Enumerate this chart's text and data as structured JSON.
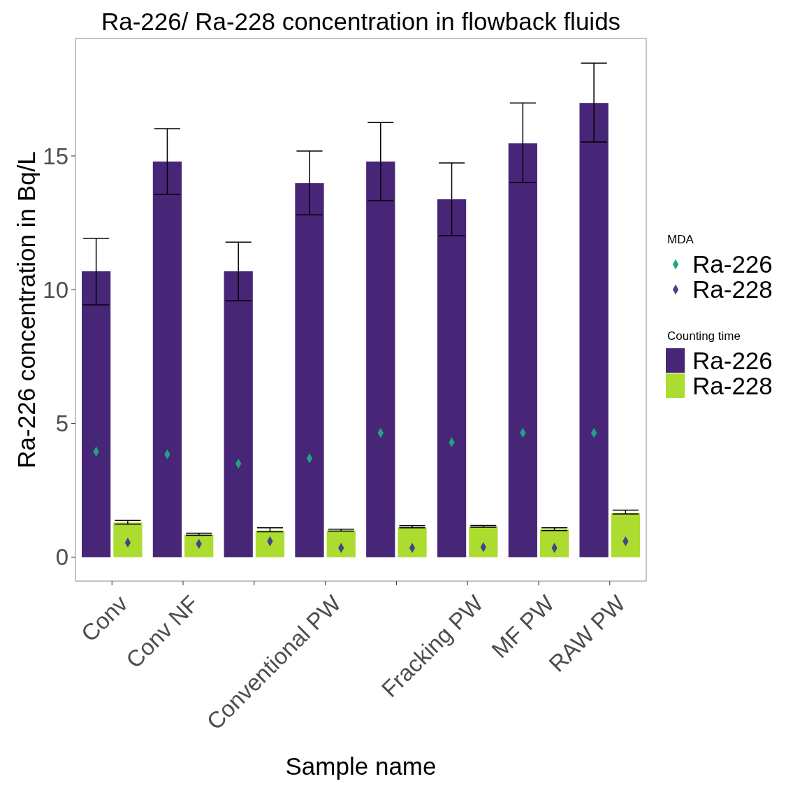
{
  "chart_data": {
    "type": "bar",
    "title": "Ra-226/ Ra-228 concentration in flowback fluids",
    "xlabel": "Sample name",
    "ylabel": "Ra-226 concentration in Bq/L",
    "categories": [
      "Conv",
      "Conv NF",
      null,
      "Conventional PW",
      null,
      "Fracking PW",
      "MF PW",
      "RAW PW"
    ],
    "series": [
      {
        "name": "Ra-226",
        "color": "#482677",
        "values": [
          10.69,
          14.79,
          10.69,
          13.98,
          14.79,
          13.38,
          15.47,
          16.98
        ],
        "errors": [
          [
            9.43,
            11.92
          ],
          [
            13.56,
            16.02
          ],
          [
            9.59,
            11.78
          ],
          [
            12.8,
            15.18
          ],
          [
            13.33,
            16.25
          ],
          [
            12.02,
            14.74
          ],
          [
            14.01,
            16.98
          ],
          [
            15.52,
            18.47
          ]
        ]
      },
      {
        "name": "Ra-228",
        "color": "#addc30",
        "values": [
          1.3,
          0.85,
          1.0,
          1.0,
          1.12,
          1.15,
          1.05,
          1.65
        ],
        "errors": [
          [
            1.24,
            1.38
          ],
          [
            0.82,
            0.9
          ],
          [
            0.95,
            1.1
          ],
          [
            0.98,
            1.05
          ],
          [
            1.1,
            1.18
          ],
          [
            1.12,
            1.19
          ],
          [
            1.0,
            1.1
          ],
          [
            1.62,
            1.76
          ]
        ]
      },
      {
        "type": "scatter",
        "name": "Ra-226",
        "color": "#20a386",
        "marker": "diamond",
        "values": [
          3.95,
          3.85,
          3.5,
          3.7,
          4.65,
          4.3,
          4.65,
          4.65
        ]
      },
      {
        "type": "scatter",
        "name": "Ra-228",
        "color": "#3f4788",
        "marker": "diamond",
        "values": [
          0.55,
          0.5,
          0.6,
          0.35,
          0.35,
          0.38,
          0.35,
          0.6
        ]
      }
    ],
    "ylim": [
      -0.89,
      19.39
    ],
    "yticks": [
      0,
      5,
      10,
      15
    ],
    "grid": false,
    "legend": "right",
    "legend_title": "Counting time",
    "annotations": [
      "MDA"
    ]
  }
}
